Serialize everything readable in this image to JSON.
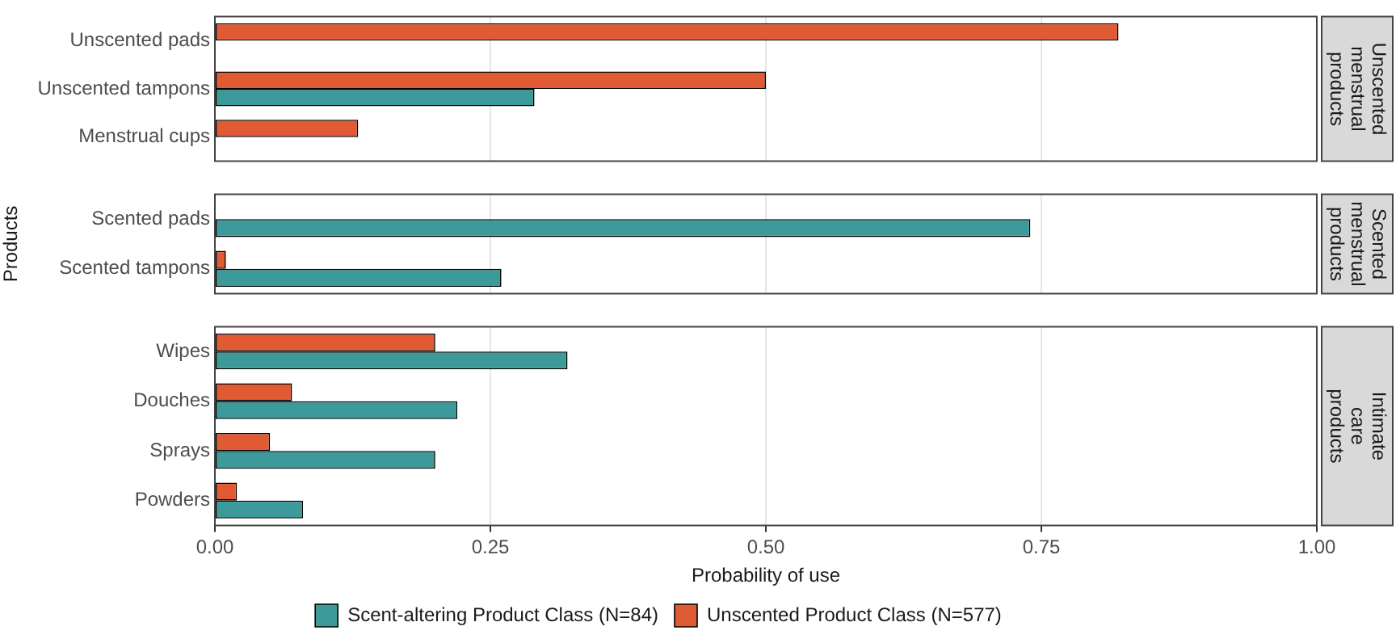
{
  "chart_data": [
    {
      "type": "bar",
      "orientation": "horizontal",
      "title": "Unscented menstrual products",
      "categories": [
        "Unscented pads",
        "Unscented tampons",
        "Menstrual cups"
      ],
      "series": [
        {
          "color": "#3d9a9a",
          "values": [
            null,
            0.29,
            null
          ]
        },
        {
          "color": "#e05a33",
          "values": [
            0.82,
            0.5,
            0.13
          ]
        }
      ],
      "xlim": [
        0,
        1
      ],
      "xticks": [
        0,
        0.25,
        0.5,
        0.75,
        1
      ],
      "grid": "x",
      "tick_labels": "y",
      "legend": false
    },
    {
      "type": "bar",
      "orientation": "horizontal",
      "title": "Scented menstrual products",
      "ylabel": "Products",
      "categories": [
        "Scented pads",
        "Scented tampons"
      ],
      "series": [
        {
          "color": "#3d9a9a",
          "values": [
            0.74,
            0.26
          ]
        },
        {
          "color": "#e05a33",
          "values": [
            null,
            0.01
          ]
        }
      ],
      "xlim": [
        0,
        1
      ],
      "xticks": [
        0,
        0.25,
        0.5,
        0.75,
        1
      ],
      "grid": "x",
      "tick_labels": "y",
      "legend": false
    },
    {
      "type": "bar",
      "orientation": "horizontal",
      "title": "Intimate care products",
      "xlabel": "Probability of use",
      "categories": [
        "Wipes",
        "Douches",
        "Sprays",
        "Powders"
      ],
      "series": [
        {
          "name": "Scent-altering Product Class (N=84)",
          "color": "#3d9a9a",
          "values": [
            0.32,
            0.22,
            0.2,
            0.08
          ]
        },
        {
          "name": "Unscented Product Class (N=577)",
          "color": "#e05a33",
          "values": [
            0.2,
            0.07,
            0.05,
            0.02
          ]
        }
      ],
      "xlim": [
        0,
        1
      ],
      "xticks": [
        {
          "value": 0,
          "label": "0.00"
        },
        {
          "value": 0.25,
          "label": "0.25"
        },
        {
          "value": 0.5,
          "label": "0.50"
        },
        {
          "value": 0.75,
          "label": "0.75"
        },
        {
          "value": 1,
          "label": "1.00"
        }
      ],
      "grid": "x",
      "legend": "bottom"
    }
  ]
}
